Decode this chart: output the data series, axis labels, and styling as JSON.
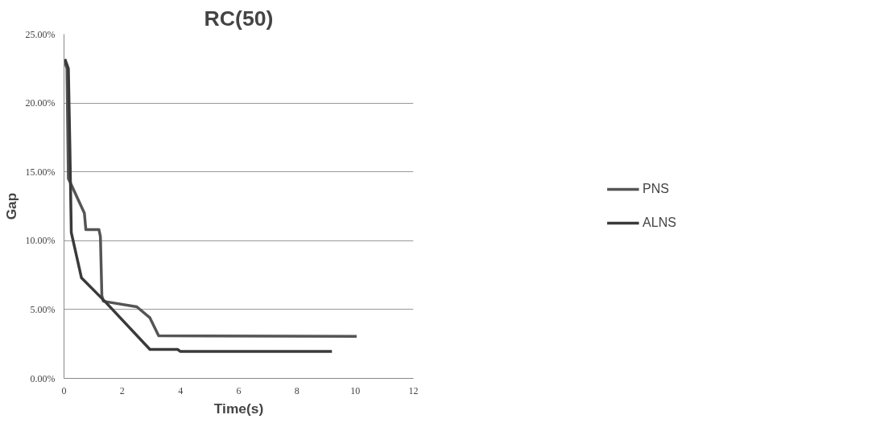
{
  "chart_data": {
    "type": "line",
    "title": "RC(50)",
    "xlabel": "Time(s)",
    "ylabel": "Gap",
    "xlim": [
      0,
      12
    ],
    "xticks": [
      0,
      2,
      4,
      6,
      8,
      10,
      12
    ],
    "ylim": [
      0,
      25
    ],
    "yticks": [
      {
        "value": 0,
        "label": "0.00%"
      },
      {
        "value": 5,
        "label": "5.00%"
      },
      {
        "value": 10,
        "label": "10.00%"
      },
      {
        "value": 15,
        "label": "15.00%"
      },
      {
        "value": 20,
        "label": "20.00%"
      },
      {
        "value": 25,
        "label": "25.00%"
      }
    ],
    "grid": "y",
    "legend": "right",
    "marker": "none",
    "line_style": "solid",
    "series": [
      {
        "name": "PNS",
        "color": "#555555",
        "x": [
          0.03,
          0.1,
          0.15,
          0.2,
          0.7,
          0.75,
          1.2,
          1.25,
          1.3,
          1.35,
          2.5,
          2.95,
          3.25,
          10.05
        ],
        "values": [
          23.0,
          22.5,
          14.5,
          14.3,
          12.0,
          10.8,
          10.8,
          10.3,
          6.0,
          5.6,
          5.2,
          4.4,
          3.1,
          3.05
        ]
      },
      {
        "name": "ALNS",
        "color": "#3a3a3a",
        "x": [
          0.03,
          0.15,
          0.2,
          0.25,
          0.6,
          1.4,
          2.95,
          3.9,
          4.0,
          9.2
        ],
        "values": [
          23.2,
          22.5,
          17.0,
          10.6,
          7.3,
          5.6,
          2.1,
          2.1,
          1.95,
          1.95
        ]
      }
    ]
  }
}
